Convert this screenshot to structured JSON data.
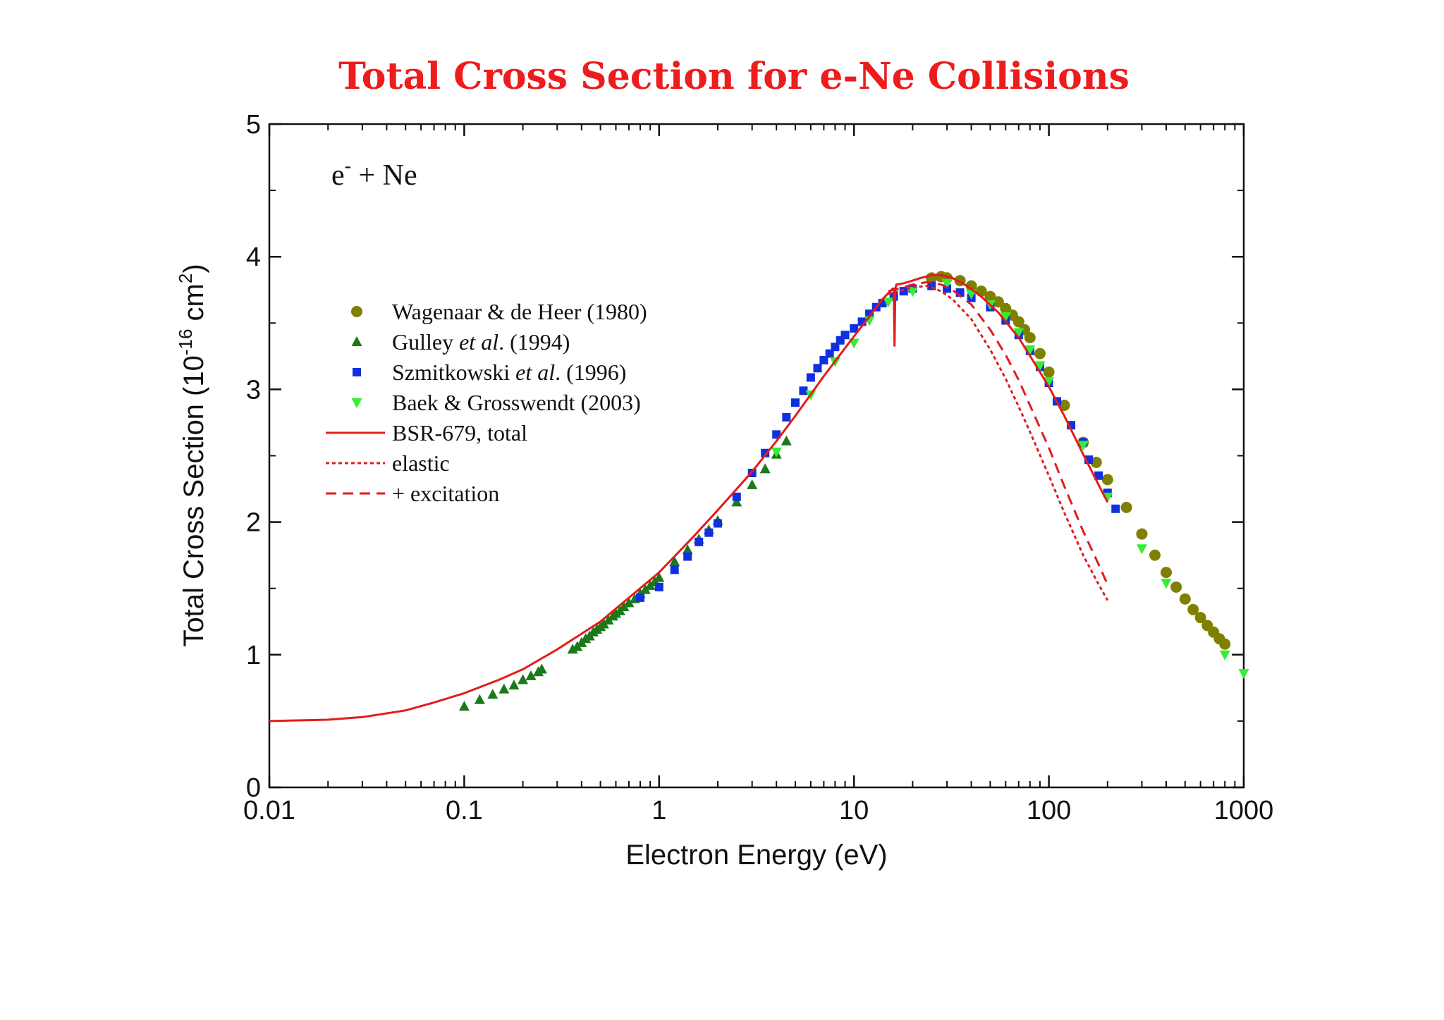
{
  "chart_data": {
    "type": "scatter",
    "title": "Total Cross Section for e-Ne Collisions",
    "xlabel": "Electron Energy (eV)",
    "ylabel": {
      "base": "Total Cross Section (10",
      "exp": "-16",
      "unit": " cm",
      "unit_exp": "2",
      "close": ")"
    },
    "annotation": {
      "base": "e",
      "sup": "-",
      "rest": " + Ne"
    },
    "xscale": "log",
    "xlim": [
      0.01,
      1000
    ],
    "ylim": [
      0,
      5
    ],
    "xticks": [
      {
        "value": 0.01,
        "label": "0.01"
      },
      {
        "value": 0.1,
        "label": "0.1"
      },
      {
        "value": 1,
        "label": "1"
      },
      {
        "value": 10,
        "label": "10"
      },
      {
        "value": 100,
        "label": "100"
      },
      {
        "value": 1000,
        "label": "1000"
      }
    ],
    "yticks": [
      {
        "value": 0,
        "label": "0"
      },
      {
        "value": 1,
        "label": "1"
      },
      {
        "value": 2,
        "label": "2"
      },
      {
        "value": 3,
        "label": "3"
      },
      {
        "value": 4,
        "label": "4"
      },
      {
        "value": 5,
        "label": "5"
      }
    ],
    "grid": false,
    "legend_position": "upper-left",
    "series": [
      {
        "name": "Wagenaar & de Heer (1980)",
        "name_parts": [
          {
            "text": "Wagenaar & de Heer (1980)",
            "italic": false
          }
        ],
        "kind": "marker",
        "marker": "circle",
        "color": "#808000",
        "points": [
          [
            25,
            3.84
          ],
          [
            28,
            3.85
          ],
          [
            30,
            3.84
          ],
          [
            35,
            3.82
          ],
          [
            40,
            3.78
          ],
          [
            45,
            3.74
          ],
          [
            50,
            3.7
          ],
          [
            55,
            3.66
          ],
          [
            60,
            3.61
          ],
          [
            65,
            3.56
          ],
          [
            70,
            3.51
          ],
          [
            75,
            3.45
          ],
          [
            80,
            3.39
          ],
          [
            90,
            3.27
          ],
          [
            100,
            3.13
          ],
          [
            120,
            2.88
          ],
          [
            150,
            2.6
          ],
          [
            175,
            2.45
          ],
          [
            200,
            2.32
          ],
          [
            250,
            2.11
          ],
          [
            300,
            1.91
          ],
          [
            350,
            1.75
          ],
          [
            400,
            1.62
          ],
          [
            450,
            1.51
          ],
          [
            500,
            1.42
          ],
          [
            550,
            1.34
          ],
          [
            600,
            1.28
          ],
          [
            650,
            1.22
          ],
          [
            700,
            1.17
          ],
          [
            750,
            1.12
          ],
          [
            800,
            1.08
          ]
        ]
      },
      {
        "name": "Gulley et al. (1994)",
        "name_parts": [
          {
            "text": "Gulley ",
            "italic": false
          },
          {
            "text": "et al",
            "italic": true
          },
          {
            "text": ". (1994)",
            "italic": false
          }
        ],
        "kind": "marker",
        "marker": "triangle-up",
        "color": "#1a7a1a",
        "points": [
          [
            0.1,
            0.61
          ],
          [
            0.12,
            0.66
          ],
          [
            0.14,
            0.7
          ],
          [
            0.16,
            0.74
          ],
          [
            0.18,
            0.77
          ],
          [
            0.2,
            0.81
          ],
          [
            0.22,
            0.84
          ],
          [
            0.24,
            0.87
          ],
          [
            0.25,
            0.89
          ],
          [
            0.36,
            1.04
          ],
          [
            0.38,
            1.06
          ],
          [
            0.4,
            1.09
          ],
          [
            0.42,
            1.12
          ],
          [
            0.44,
            1.14
          ],
          [
            0.46,
            1.17
          ],
          [
            0.48,
            1.19
          ],
          [
            0.5,
            1.21
          ],
          [
            0.52,
            1.23
          ],
          [
            0.55,
            1.26
          ],
          [
            0.58,
            1.29
          ],
          [
            0.6,
            1.31
          ],
          [
            0.63,
            1.33
          ],
          [
            0.66,
            1.36
          ],
          [
            0.7,
            1.39
          ],
          [
            0.75,
            1.42
          ],
          [
            0.8,
            1.46
          ],
          [
            0.85,
            1.49
          ],
          [
            0.9,
            1.52
          ],
          [
            0.95,
            1.55
          ],
          [
            1.0,
            1.58
          ],
          [
            1.2,
            1.7
          ],
          [
            1.4,
            1.79
          ],
          [
            1.6,
            1.87
          ],
          [
            1.8,
            1.94
          ],
          [
            2.0,
            2.01
          ],
          [
            2.5,
            2.15
          ],
          [
            3.0,
            2.28
          ],
          [
            3.5,
            2.4
          ],
          [
            4.0,
            2.51
          ],
          [
            4.5,
            2.61
          ]
        ]
      },
      {
        "name": "Szmitkowski et al. (1996)",
        "name_parts": [
          {
            "text": "Szmitkowski ",
            "italic": false
          },
          {
            "text": "et al",
            "italic": true
          },
          {
            "text": ". (1996)",
            "italic": false
          }
        ],
        "kind": "marker",
        "marker": "square",
        "color": "#1030e0",
        "points": [
          [
            0.8,
            1.43
          ],
          [
            1.0,
            1.51
          ],
          [
            1.2,
            1.64
          ],
          [
            1.4,
            1.74
          ],
          [
            1.6,
            1.85
          ],
          [
            1.8,
            1.92
          ],
          [
            2.0,
            1.99
          ],
          [
            2.5,
            2.19
          ],
          [
            3.0,
            2.37
          ],
          [
            3.5,
            2.52
          ],
          [
            4.0,
            2.66
          ],
          [
            4.5,
            2.79
          ],
          [
            5.0,
            2.9
          ],
          [
            5.5,
            2.99
          ],
          [
            6.0,
            3.09
          ],
          [
            6.5,
            3.16
          ],
          [
            7.0,
            3.22
          ],
          [
            7.5,
            3.27
          ],
          [
            8.0,
            3.32
          ],
          [
            8.5,
            3.37
          ],
          [
            9.0,
            3.41
          ],
          [
            10,
            3.46
          ],
          [
            11,
            3.51
          ],
          [
            12,
            3.57
          ],
          [
            13,
            3.62
          ],
          [
            14,
            3.65
          ],
          [
            16,
            3.7
          ],
          [
            18,
            3.74
          ],
          [
            20,
            3.76
          ],
          [
            25,
            3.78
          ],
          [
            30,
            3.76
          ],
          [
            35,
            3.73
          ],
          [
            40,
            3.69
          ],
          [
            50,
            3.62
          ],
          [
            60,
            3.52
          ],
          [
            70,
            3.41
          ],
          [
            80,
            3.29
          ],
          [
            90,
            3.17
          ],
          [
            100,
            3.05
          ],
          [
            110,
            2.91
          ],
          [
            130,
            2.73
          ],
          [
            150,
            2.6
          ],
          [
            160,
            2.47
          ],
          [
            180,
            2.35
          ],
          [
            200,
            2.22
          ],
          [
            220,
            2.1
          ]
        ]
      },
      {
        "name": "Baek & Grosswendt (2003)",
        "name_parts": [
          {
            "text": "Baek & Grosswendt (2003)",
            "italic": false
          }
        ],
        "kind": "marker",
        "marker": "triangle-down",
        "color": "#33ee33",
        "points": [
          [
            4,
            2.53
          ],
          [
            6,
            2.96
          ],
          [
            8,
            3.21
          ],
          [
            10,
            3.35
          ],
          [
            12,
            3.52
          ],
          [
            15,
            3.66
          ],
          [
            20,
            3.74
          ],
          [
            30,
            3.8
          ],
          [
            40,
            3.72
          ],
          [
            50,
            3.64
          ],
          [
            60,
            3.55
          ],
          [
            70,
            3.43
          ],
          [
            80,
            3.3
          ],
          [
            90,
            3.18
          ],
          [
            100,
            3.06
          ],
          [
            150,
            2.58
          ],
          [
            200,
            2.19
          ],
          [
            300,
            1.8
          ],
          [
            400,
            1.54
          ],
          [
            800,
            1.0
          ],
          [
            1000,
            0.86
          ]
        ]
      },
      {
        "name": "BSR-679, total",
        "name_parts": [
          {
            "text": "BSR-679, total",
            "italic": false
          }
        ],
        "kind": "line",
        "dash": "solid",
        "color": "#e31b1b",
        "points": [
          [
            0.01,
            0.5
          ],
          [
            0.02,
            0.51
          ],
          [
            0.03,
            0.53
          ],
          [
            0.05,
            0.58
          ],
          [
            0.07,
            0.64
          ],
          [
            0.1,
            0.71
          ],
          [
            0.15,
            0.81
          ],
          [
            0.2,
            0.89
          ],
          [
            0.3,
            1.04
          ],
          [
            0.5,
            1.25
          ],
          [
            0.7,
            1.43
          ],
          [
            1.0,
            1.62
          ],
          [
            1.5,
            1.89
          ],
          [
            2,
            2.09
          ],
          [
            3,
            2.38
          ],
          [
            4,
            2.61
          ],
          [
            5,
            2.8
          ],
          [
            7,
            3.1
          ],
          [
            10,
            3.4
          ],
          [
            12,
            3.55
          ],
          [
            14,
            3.68
          ],
          [
            15.8,
            3.76
          ],
          [
            16.0,
            3.76
          ],
          [
            16.15,
            3.33
          ],
          [
            16.3,
            3.76
          ],
          [
            16.5,
            3.79
          ],
          [
            18,
            3.8
          ],
          [
            20,
            3.82
          ],
          [
            22,
            3.84
          ],
          [
            25,
            3.86
          ],
          [
            28,
            3.86
          ],
          [
            32,
            3.84
          ],
          [
            38,
            3.78
          ],
          [
            45,
            3.7
          ],
          [
            55,
            3.58
          ],
          [
            70,
            3.39
          ],
          [
            85,
            3.19
          ],
          [
            100,
            3.02
          ],
          [
            120,
            2.8
          ],
          [
            150,
            2.51
          ],
          [
            180,
            2.28
          ],
          [
            200,
            2.15
          ]
        ]
      },
      {
        "name": "elastic",
        "name_parts": [
          {
            "text": "elastic",
            "italic": false
          }
        ],
        "kind": "line",
        "dash": "dotted",
        "color": "#e31b1b",
        "points": [
          [
            15,
            3.72
          ],
          [
            18,
            3.75
          ],
          [
            20,
            3.77
          ],
          [
            24,
            3.78
          ],
          [
            28,
            3.74
          ],
          [
            32,
            3.68
          ],
          [
            40,
            3.53
          ],
          [
            50,
            3.3
          ],
          [
            60,
            3.08
          ],
          [
            70,
            2.87
          ],
          [
            80,
            2.68
          ],
          [
            100,
            2.35
          ],
          [
            120,
            2.07
          ],
          [
            150,
            1.75
          ],
          [
            180,
            1.53
          ],
          [
            200,
            1.41
          ]
        ]
      },
      {
        "name": "+ excitation",
        "name_parts": [
          {
            "text": "+ excitation",
            "italic": false
          }
        ],
        "kind": "line",
        "dash": "dashed",
        "color": "#e31b1b",
        "points": [
          [
            15,
            3.74
          ],
          [
            18,
            3.77
          ],
          [
            20,
            3.79
          ],
          [
            24,
            3.81
          ],
          [
            28,
            3.79
          ],
          [
            32,
            3.75
          ],
          [
            40,
            3.64
          ],
          [
            50,
            3.45
          ],
          [
            60,
            3.26
          ],
          [
            70,
            3.07
          ],
          [
            80,
            2.88
          ],
          [
            100,
            2.56
          ],
          [
            120,
            2.27
          ],
          [
            150,
            1.93
          ],
          [
            180,
            1.68
          ],
          [
            200,
            1.53
          ]
        ]
      }
    ]
  }
}
